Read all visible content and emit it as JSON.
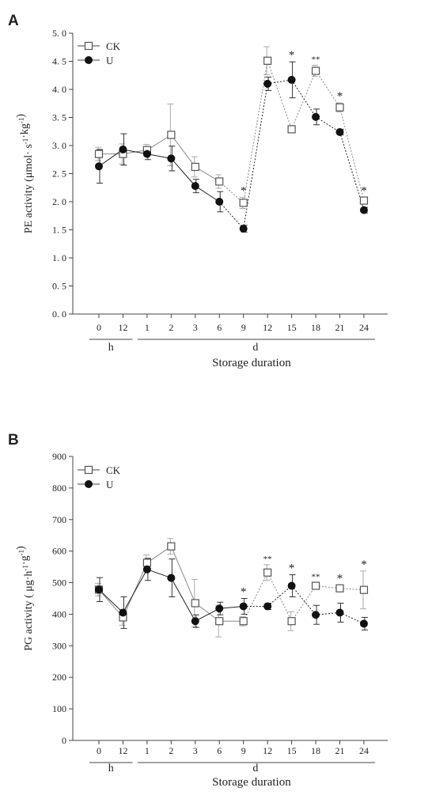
{
  "chart_data": [
    {
      "panel_label": "A",
      "type": "line",
      "ylabel": "PE activity (μmol· s-1·kg-1)",
      "ylabel_parts": {
        "main": "PE activity (μmol· s",
        "sup1": "-1",
        "mid": "·kg",
        "sup2": "-1",
        "end": ")"
      },
      "xlabel": "Storage duration",
      "ylim": [
        0,
        5
      ],
      "yticks": [
        "0. 0",
        "0. 5",
        "1. 0",
        "1. 5",
        "2. 0",
        "2. 5",
        "3. 0",
        "3. 5",
        "4. 0",
        "4. 5",
        "5. 0"
      ],
      "categories": [
        "0",
        "12",
        "1",
        "2",
        "3",
        "6",
        "9",
        "12",
        "15",
        "18",
        "21",
        "24"
      ],
      "group_labels": [
        "h",
        "d"
      ],
      "series": [
        {
          "name": "CK",
          "marker": "open-square",
          "values": [
            2.85,
            2.85,
            2.92,
            3.19,
            2.62,
            2.36,
            1.98,
            4.51,
            3.29,
            4.33,
            3.68,
            2.02
          ],
          "errors": [
            0.12,
            0.18,
            0.1,
            0.55,
            0.18,
            0.12,
            0.1,
            0.25,
            0.05,
            0.1,
            0.08,
            0.06
          ]
        },
        {
          "name": "U",
          "marker": "filled-circle",
          "values": [
            2.63,
            2.93,
            2.85,
            2.77,
            2.28,
            2.0,
            1.52,
            4.1,
            4.17,
            3.51,
            3.24,
            1.85
          ],
          "errors": [
            0.3,
            0.28,
            0.1,
            0.22,
            0.12,
            0.18,
            0.06,
            0.12,
            0.32,
            0.14,
            0.05,
            0.05
          ]
        }
      ],
      "annotations": [
        "",
        "",
        "",
        "",
        "",
        "",
        "*",
        "",
        "*",
        "**",
        "*",
        "*"
      ]
    },
    {
      "panel_label": "B",
      "type": "line",
      "ylabel": "PG activity ( μg·h-1·g-1)",
      "ylabel_parts": {
        "main": "PG activity ( μg·h",
        "sup1": "-1",
        "mid": "·g",
        "sup2": "-1",
        "end": ")"
      },
      "xlabel": "Storage duration",
      "ylim": [
        0,
        900
      ],
      "yticks": [
        "0",
        "100",
        "200",
        "300",
        "400",
        "500",
        "600",
        "700",
        "800",
        "900"
      ],
      "categories": [
        "0",
        "12",
        "1",
        "2",
        "3",
        "6",
        "9",
        "12",
        "15",
        "18",
        "21",
        "24"
      ],
      "group_labels": [
        "h",
        "d"
      ],
      "series": [
        {
          "name": "CK",
          "marker": "open-square",
          "values": [
            478,
            390,
            563,
            615,
            435,
            378,
            378,
            532,
            378,
            490,
            482,
            477
          ],
          "errors": [
            20,
            25,
            25,
            25,
            75,
            50,
            15,
            25,
            30,
            10,
            10,
            60
          ]
        },
        {
          "name": "U",
          "marker": "filled-circle",
          "values": [
            478,
            405,
            542,
            515,
            378,
            418,
            425,
            425,
            490,
            398,
            405,
            370
          ],
          "errors": [
            38,
            50,
            35,
            60,
            20,
            20,
            25,
            10,
            35,
            30,
            30,
            20
          ]
        }
      ],
      "annotations": [
        "",
        "",
        "",
        "",
        "",
        "",
        "*",
        "**",
        "*",
        "**",
        "*",
        "*"
      ]
    }
  ]
}
